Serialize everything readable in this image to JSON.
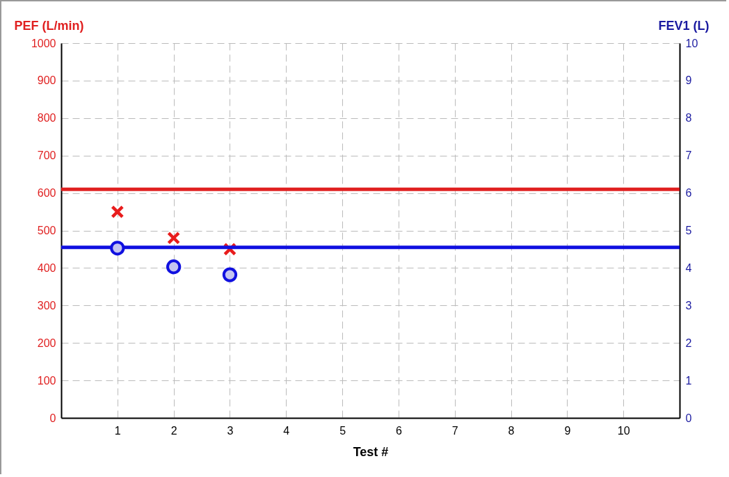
{
  "chart_data": {
    "type": "scatter",
    "xlabel": "Test #",
    "ylabel": "PEF (L/min)",
    "y2label": "FEV1  (L)",
    "xlim": [
      0,
      11
    ],
    "xticks": [
      1,
      2,
      3,
      4,
      5,
      6,
      7,
      8,
      9,
      10
    ],
    "ylim": [
      0,
      1000
    ],
    "yticks": [
      0,
      100,
      200,
      300,
      400,
      500,
      600,
      700,
      800,
      900,
      1000
    ],
    "y2lim": [
      0,
      10
    ],
    "y2ticks": [
      0,
      1,
      2,
      3,
      4,
      5,
      6,
      7,
      8,
      9,
      10
    ],
    "grid": true,
    "series": [
      {
        "color": "#e81c1c",
        "marker": "cross",
        "x": [
          1,
          2,
          3
        ],
        "values": [
          550,
          480,
          450
        ]
      },
      {
        "color": "#1010e0",
        "marker": "circle",
        "axis": "y2",
        "x": [
          1,
          2,
          3
        ],
        "values": [
          4.53,
          4.03,
          3.82
        ]
      }
    ],
    "ref_lines": [
      {
        "axis": "y",
        "value": 610,
        "color": "#e02020"
      },
      {
        "axis": "y2",
        "value": 4.55,
        "color": "#1010e0"
      }
    ]
  }
}
